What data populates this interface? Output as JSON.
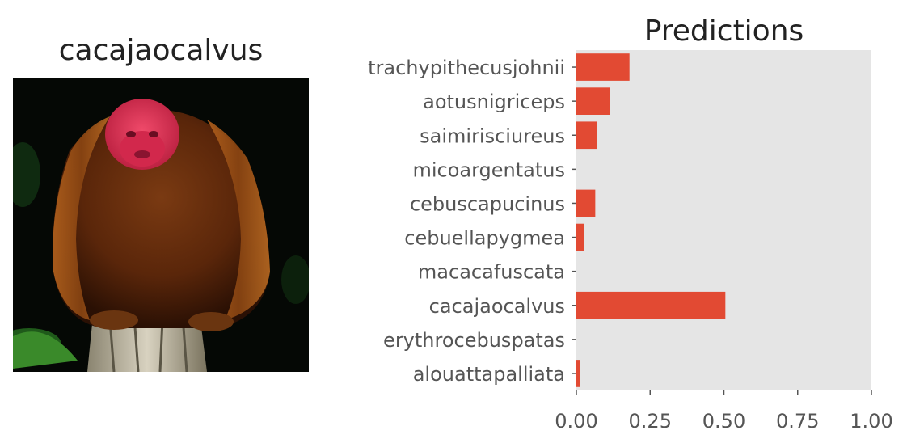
{
  "image_panel": {
    "title": "cacajaocalvus",
    "subject_description": ""
  },
  "colors": {
    "bar": "#E24A33",
    "plot_background": "#E5E5E5",
    "tick_label": "#555555",
    "title": "#222222"
  },
  "chart_data": {
    "type": "bar",
    "orientation": "horizontal",
    "title": "Predictions",
    "xlabel": "",
    "ylabel": "",
    "categories": [
      "trachypithecusjohnii",
      "aotusnigriceps",
      "saimirisciureus",
      "micoargentatus",
      "cebuscapucinus",
      "cebuellapygmea",
      "macacafuscata",
      "cacajaocalvus",
      "erythrocebuspatas",
      "alouattapalliata"
    ],
    "values": [
      0.18,
      0.113,
      0.07,
      0.0,
      0.064,
      0.025,
      0.0,
      0.505,
      0.0,
      0.013
    ],
    "xlim": [
      0,
      1
    ],
    "xticks": [
      "0.00",
      "0.25",
      "0.50",
      "0.75",
      "1.00"
    ],
    "grid": false,
    "legend": "none"
  }
}
